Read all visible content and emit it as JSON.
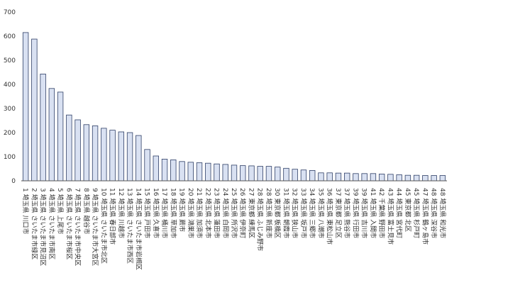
{
  "chart_data": {
    "type": "bar",
    "title": "",
    "xlabel": "",
    "ylabel": "",
    "ylim": [
      0,
      700
    ],
    "yticks": [
      0,
      100,
      200,
      300,
      400,
      500,
      600,
      700
    ],
    "grid": false,
    "legend": "none",
    "bar_fill": "#d9e1f2",
    "bar_stroke": "#2f3f66",
    "categories": [
      "1 埼玉県 川口市",
      "2 埼玉県 さいたま市緑区",
      "3 埼玉県 さいたま市見沼区",
      "4 埼玉県 さいたま市南区",
      "5 埼玉県 上尾市",
      "6 埼玉県 さいたま市桜区",
      "7 埼玉県 さいたま市中央区",
      "8 埼玉県 越谷市",
      "9 埼玉県 さいたま市大宮区",
      "10 埼玉県 さいたま市北区",
      "11 埼玉県 春日部市",
      "12 埼玉県 川越市",
      "13 埼玉県 さいたま市西区",
      "14 埼玉県 さいたま市岩槻区",
      "15 埼玉県 戸田市",
      "16 埼玉県 久喜市",
      "17 埼玉県 桶川市",
      "18 埼玉県 草加市",
      "19 埼玉県 蕨市",
      "20 埼玉県 鴻巣市",
      "21 埼玉県 加須市",
      "22 埼玉県 北本市",
      "23 埼玉県 蓮田市",
      "24 埼玉県 白岡市",
      "25 埼玉県 所沢市",
      "26 埼玉県 伊奈町",
      "27 東京都 練馬区",
      "28 埼玉県 ふじみ野市",
      "28 埼玉県 新座市",
      "30 東京都 板橋区",
      "31 埼玉県 朝霞市",
      "32 埼玉県 狭山市",
      "33 埼玉県 坂戸市",
      "34 埼玉県 三郷市",
      "35 埼玉県 八潮市",
      "36 埼玉県 東松山市",
      "37 東京都 足立区",
      "37 埼玉県 熊谷市",
      "39 埼玉県 行田市",
      "39 埼玉県 吉川市",
      "41 埼玉県 入間市",
      "42 千葉県 野田市",
      "43 埼玉県 富士見市",
      "44 埼玉県 宮代町",
      "45 東京都 北区",
      "45 埼玉県 杉戸町",
      "47 埼玉県 鶴ヶ島市",
      "48 埼玉県 深谷市",
      "48 埼玉県 和光市"
    ],
    "values": [
      615,
      588,
      443,
      383,
      368,
      273,
      253,
      233,
      228,
      218,
      210,
      203,
      200,
      188,
      130,
      103,
      90,
      87,
      80,
      77,
      75,
      73,
      70,
      68,
      65,
      63,
      62,
      60,
      60,
      57,
      52,
      48,
      45,
      43,
      33,
      33,
      32,
      32,
      30,
      30,
      30,
      28,
      27,
      25,
      23,
      23,
      22,
      22,
      22
    ]
  }
}
